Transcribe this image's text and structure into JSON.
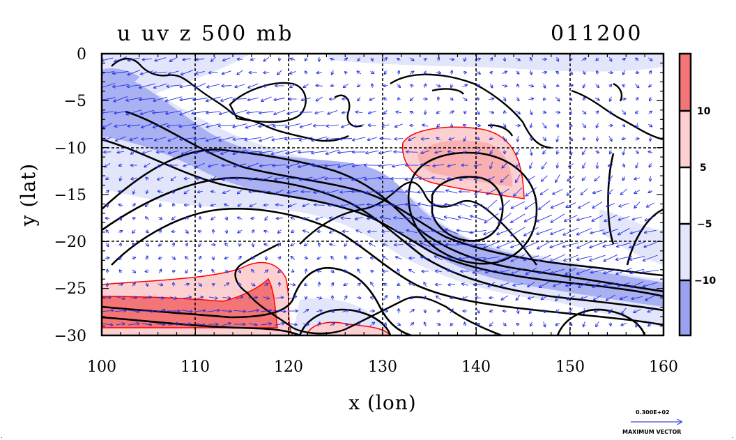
{
  "chart_data": {
    "type": "heatmap",
    "title": "u uv z 500 mb",
    "timestamp": "011200",
    "xlabel": "x (lon)",
    "ylabel": "y (lat)",
    "xlim": [
      100,
      160
    ],
    "ylim": [
      -30,
      0
    ],
    "x_ticks": [
      100,
      110,
      120,
      130,
      140,
      150,
      160
    ],
    "x_tick_labels": [
      "100",
      "110",
      "120",
      "130",
      "140",
      "150",
      "160"
    ],
    "y_ticks": [
      0,
      -5,
      -10,
      -15,
      -20,
      -25,
      -30
    ],
    "y_tick_labels": [
      "0",
      "−5",
      "−10",
      "−15",
      "−20",
      "−25",
      "−30"
    ],
    "grid_lon": [
      110,
      120,
      130,
      140,
      150
    ],
    "grid_lat": [
      -10,
      -20
    ],
    "colorbar": {
      "levels": [
        -10,
        -5,
        5,
        10
      ],
      "labels": [
        "−10",
        "−5",
        "5",
        "10"
      ],
      "colors": [
        "#fa6d6d",
        "#fccfcf",
        "#ffffff",
        "#e6e8fb",
        "#9aa1ef"
      ]
    },
    "shaded_regions": [
      {
        "category": "u < -10",
        "color": "#aab1f2",
        "description": "easterly jet band"
      },
      {
        "category": "-10 < u < -5",
        "color": "#e3e6fb"
      },
      {
        "category": "5 < u < 10",
        "color": "#fcd0d0"
      },
      {
        "category": "u > 10",
        "color": "#f47575"
      }
    ],
    "vector_reference": {
      "magnitude": "0.300E+02",
      "label": "MAXIMUM VECTOR"
    },
    "colors": {
      "contour": "#000000",
      "vector": "#1f2fe6",
      "positive_edge": "#ff0000",
      "grid": "#000000"
    }
  }
}
